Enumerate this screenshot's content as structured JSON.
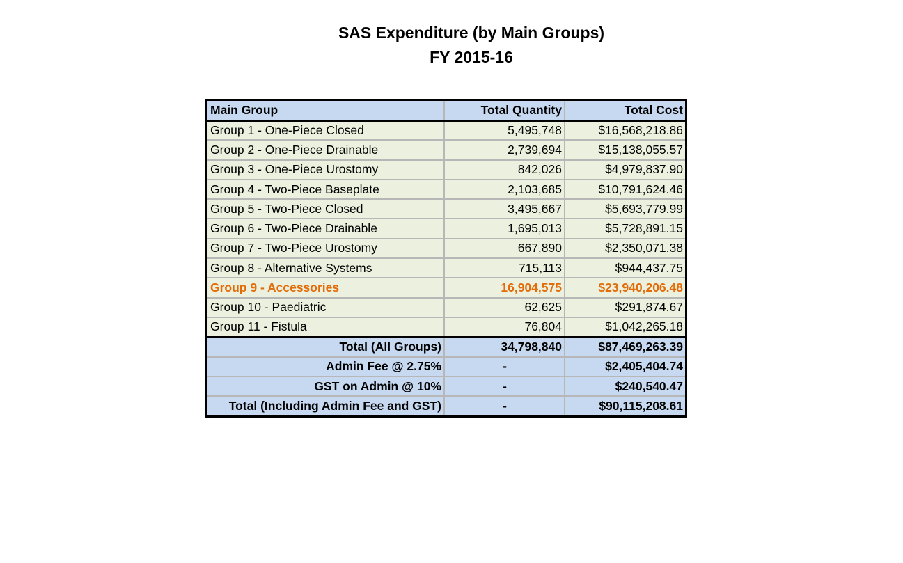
{
  "title": {
    "line1": "SAS Expenditure (by Main Groups)",
    "line2": "FY 2015-16"
  },
  "table": {
    "headers": [
      "Main Group",
      "Total Quantity",
      "Total Cost"
    ],
    "rows": [
      {
        "group": "Group 1 - One-Piece Closed",
        "quantity": "5,495,748",
        "cost": "$16,568,218.86"
      },
      {
        "group": "Group 2 - One-Piece Drainable",
        "quantity": "2,739,694",
        "cost": "$15,138,055.57"
      },
      {
        "group": "Group 3 - One-Piece Urostomy",
        "quantity": "842,026",
        "cost": "$4,979,837.90"
      },
      {
        "group": "Group 4 - Two-Piece Baseplate",
        "quantity": "2,103,685",
        "cost": "$10,791,624.46"
      },
      {
        "group": "Group 5 - Two-Piece Closed",
        "quantity": "3,495,667",
        "cost": "$5,693,779.99"
      },
      {
        "group": "Group 6 - Two-Piece Drainable",
        "quantity": "1,695,013",
        "cost": "$5,728,891.15"
      },
      {
        "group": "Group 7 - Two-Piece Urostomy",
        "quantity": "667,890",
        "cost": "$2,350,071.38"
      },
      {
        "group": "Group 8 - Alternative Systems",
        "quantity": "715,113",
        "cost": "$944,437.75"
      },
      {
        "group": "Group 9 - Accessories",
        "quantity": "16,904,575",
        "cost": "$23,940,206.48"
      },
      {
        "group": "Group 10 - Paediatric",
        "quantity": "62,625",
        "cost": "$291,874.67"
      },
      {
        "group": "Group 11 - Fistula",
        "quantity": "76,804",
        "cost": "$1,042,265.18"
      }
    ],
    "totals": [
      {
        "label": "Total (All Groups)",
        "quantity": "34,798,840",
        "cost": "$87,469,263.39"
      },
      {
        "label": "Admin Fee @ 2.75%",
        "quantity": "-",
        "cost": "$2,405,404.74"
      },
      {
        "label": "GST on Admin @ 10%",
        "quantity": "-",
        "cost": "$240,540.47"
      },
      {
        "label": "Total (Including Admin Fee and GST)",
        "quantity": "-",
        "cost": "$90,115,208.61"
      }
    ]
  },
  "colors": {
    "header_fill": "#c6d9f0",
    "row_fill": "#ebf1de",
    "highlight_text": "#e36c09"
  }
}
